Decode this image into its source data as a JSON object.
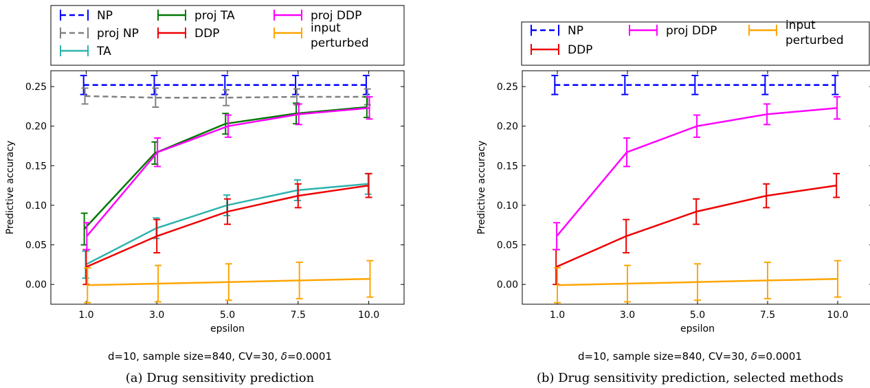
{
  "chart_data": [
    {
      "type": "line",
      "panel": "a",
      "caption": "(a) Drug sensitivity prediction",
      "note_prefix": "d=10, sample size=840, CV=30, ",
      "note_delta": "δ",
      "note_suffix": "=0.0001",
      "xlabel": "epsilon",
      "ylabel": "Predictive accuracy",
      "categories": [
        "1.0",
        "3.0",
        "5.0",
        "7.5",
        "10.0"
      ],
      "ylim": [
        -0.025,
        0.27
      ],
      "yticks": [
        "0.00",
        "0.05",
        "0.10",
        "0.15",
        "0.20",
        "0.25"
      ],
      "grid": false,
      "legend_position": "above",
      "series": [
        {
          "name": "NP",
          "color": "#0000ff",
          "dashed": true,
          "offset": -0.2,
          "values": [
            0.252,
            0.252,
            0.252,
            0.252,
            0.252
          ],
          "errors": [
            0.012,
            0.012,
            0.012,
            0.012,
            0.012
          ]
        },
        {
          "name": "proj NP",
          "color": "#808080",
          "dashed": true,
          "offset": -0.1,
          "values": [
            0.238,
            0.236,
            0.236,
            0.237,
            0.237
          ],
          "errors": [
            0.01,
            0.012,
            0.01,
            0.01,
            0.01
          ]
        },
        {
          "name": "TA",
          "color": "#2db3ad",
          "dashed": false,
          "offset": -0.05,
          "values": [
            0.025,
            0.071,
            0.1,
            0.119,
            0.127
          ],
          "errors": [
            0.017,
            0.013,
            0.013,
            0.013,
            0.013
          ]
        },
        {
          "name": "proj TA",
          "color": "#007700",
          "dashed": false,
          "offset": -0.15,
          "values": [
            0.07,
            0.166,
            0.203,
            0.216,
            0.224
          ],
          "errors": [
            0.02,
            0.014,
            0.013,
            0.013,
            0.013
          ]
        },
        {
          "name": "DDP",
          "color": "#ee0000",
          "dashed": false,
          "offset": 0.0,
          "values": [
            0.022,
            0.061,
            0.092,
            0.112,
            0.125
          ],
          "errors": [
            0.022,
            0.021,
            0.016,
            0.015,
            0.015
          ]
        },
        {
          "name": "proj DDP",
          "color": "#ff00ff",
          "dashed": false,
          "offset": 0.05,
          "values": [
            0.061,
            0.167,
            0.2,
            0.215,
            0.223
          ],
          "errors": [
            0.017,
            0.018,
            0.014,
            0.013,
            0.014
          ]
        },
        {
          "name": "input\nperturbed",
          "color": "#ffa500",
          "dashed": false,
          "offset": 0.1,
          "values": [
            -0.001,
            0.001,
            0.003,
            0.005,
            0.007
          ],
          "errors": [
            0.022,
            0.023,
            0.023,
            0.023,
            0.023
          ]
        }
      ]
    },
    {
      "type": "line",
      "panel": "b",
      "caption": "(b) Drug sensitivity prediction, selected methods",
      "note_prefix": "d=10, sample size=840, CV=30, ",
      "note_delta": "δ",
      "note_suffix": "=0.0001",
      "xlabel": "epsilon",
      "ylabel": "Predictive accuracy",
      "categories": [
        "1.0",
        "3.0",
        "5.0",
        "7.5",
        "10.0"
      ],
      "ylim": [
        -0.025,
        0.27
      ],
      "yticks": [
        "0.00",
        "0.05",
        "0.10",
        "0.15",
        "0.20",
        "0.25"
      ],
      "grid": false,
      "legend_position": "above",
      "series": [
        {
          "name": "NP",
          "color": "#0000ff",
          "dashed": true,
          "offset": -0.2,
          "values": [
            0.252,
            0.252,
            0.252,
            0.252,
            0.252
          ],
          "errors": [
            0.012,
            0.012,
            0.012,
            0.012,
            0.012
          ]
        },
        {
          "name": "DDP",
          "color": "#ee0000",
          "dashed": false,
          "offset": -0.1,
          "values": [
            0.022,
            0.061,
            0.092,
            0.112,
            0.125
          ],
          "errors": [
            0.022,
            0.021,
            0.016,
            0.015,
            0.015
          ]
        },
        {
          "name": "proj DDP",
          "color": "#ff00ff",
          "dashed": false,
          "offset": -0.05,
          "values": [
            0.061,
            0.167,
            0.2,
            0.215,
            0.223
          ],
          "errors": [
            0.017,
            0.018,
            0.014,
            0.013,
            0.014
          ]
        },
        {
          "name": "input\nperturbed",
          "color": "#ffa500",
          "dashed": false,
          "offset": 0.0,
          "values": [
            -0.001,
            0.001,
            0.003,
            0.005,
            0.007
          ],
          "errors": [
            0.022,
            0.023,
            0.023,
            0.023,
            0.023
          ]
        }
      ]
    }
  ]
}
